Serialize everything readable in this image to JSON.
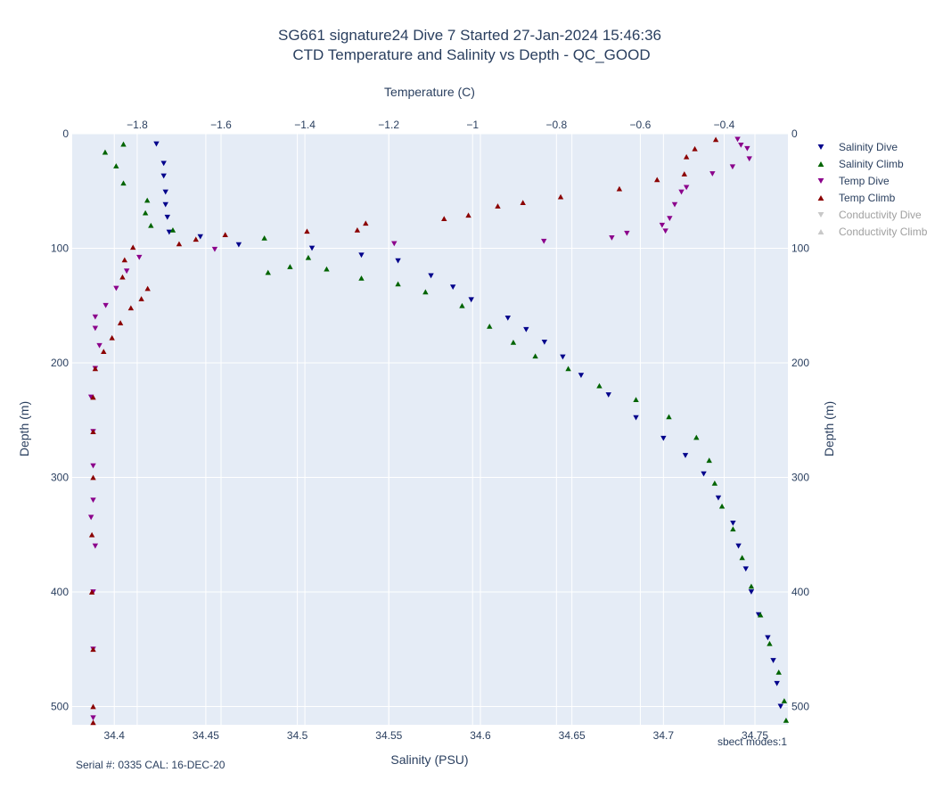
{
  "chart_data": {
    "type": "scatter",
    "title": "SG661 signature24 Dive 7 Started 27-Jan-2024 15:46:36",
    "subtitle": "CTD Temperature and Salinity vs Depth - QC_GOOD",
    "x_bottom": {
      "label": "Salinity (PSU)",
      "range": [
        34.377,
        34.768
      ],
      "ticks": [
        34.4,
        34.45,
        34.5,
        34.55,
        34.6,
        34.65,
        34.7,
        34.75
      ],
      "tick_labels": [
        "34.4",
        "34.45",
        "34.5",
        "34.55",
        "34.6",
        "34.65",
        "34.7",
        "34.75"
      ]
    },
    "x_top": {
      "label": "Temperature (C)",
      "range": [
        -1.955,
        -0.248
      ],
      "ticks": [
        -1.8,
        -1.6,
        -1.4,
        -1.2,
        -1,
        -0.8,
        -0.6,
        -0.4
      ],
      "tick_labels": [
        "−1.8",
        "−1.6",
        "−1.4",
        "−1.2",
        "−1",
        "−0.8",
        "−0.6",
        "−0.4"
      ]
    },
    "y": {
      "label": "Depth (m)",
      "range": [
        0,
        516
      ],
      "reversed": true,
      "ticks": [
        0,
        100,
        200,
        300,
        400,
        500
      ],
      "tick_labels": [
        "0",
        "100",
        "200",
        "300",
        "400",
        "500"
      ]
    },
    "grid": true,
    "legend_position": "right",
    "series": [
      {
        "name": "Salinity Dive",
        "axis": "salinity",
        "marker": "triangle-down",
        "color": "#00008b",
        "points": [
          [
            34.423,
            9
          ],
          [
            34.427,
            26
          ],
          [
            34.427,
            37
          ],
          [
            34.428,
            51
          ],
          [
            34.428,
            62
          ],
          [
            34.429,
            73
          ],
          [
            34.43,
            86
          ],
          [
            34.447,
            90
          ],
          [
            34.468,
            97
          ],
          [
            34.508,
            100
          ],
          [
            34.535,
            106
          ],
          [
            34.555,
            111
          ],
          [
            34.573,
            124
          ],
          [
            34.585,
            134
          ],
          [
            34.595,
            145
          ],
          [
            34.615,
            161
          ],
          [
            34.625,
            171
          ],
          [
            34.635,
            182
          ],
          [
            34.645,
            195
          ],
          [
            34.655,
            211
          ],
          [
            34.67,
            228
          ],
          [
            34.685,
            248
          ],
          [
            34.7,
            266
          ],
          [
            34.712,
            281
          ],
          [
            34.722,
            297
          ],
          [
            34.73,
            318
          ],
          [
            34.738,
            340
          ],
          [
            34.741,
            360
          ],
          [
            34.745,
            380
          ],
          [
            34.748,
            400
          ],
          [
            34.752,
            420
          ],
          [
            34.757,
            440
          ],
          [
            34.76,
            460
          ],
          [
            34.762,
            480
          ],
          [
            34.764,
            500
          ]
        ]
      },
      {
        "name": "Salinity Climb",
        "axis": "salinity",
        "marker": "triangle-up",
        "color": "#006400",
        "points": [
          [
            34.395,
            16
          ],
          [
            34.405,
            9
          ],
          [
            34.401,
            28
          ],
          [
            34.405,
            43
          ],
          [
            34.418,
            58
          ],
          [
            34.417,
            69
          ],
          [
            34.42,
            80
          ],
          [
            34.432,
            84
          ],
          [
            34.482,
            91
          ],
          [
            34.484,
            121
          ],
          [
            34.496,
            116
          ],
          [
            34.506,
            108
          ],
          [
            34.516,
            118
          ],
          [
            34.535,
            126
          ],
          [
            34.555,
            131
          ],
          [
            34.57,
            138
          ],
          [
            34.59,
            150
          ],
          [
            34.605,
            168
          ],
          [
            34.618,
            182
          ],
          [
            34.63,
            194
          ],
          [
            34.648,
            205
          ],
          [
            34.665,
            220
          ],
          [
            34.685,
            232
          ],
          [
            34.703,
            247
          ],
          [
            34.718,
            265
          ],
          [
            34.725,
            285
          ],
          [
            34.728,
            305
          ],
          [
            34.732,
            325
          ],
          [
            34.738,
            345
          ],
          [
            34.743,
            370
          ],
          [
            34.748,
            395
          ],
          [
            34.753,
            420
          ],
          [
            34.758,
            445
          ],
          [
            34.763,
            470
          ],
          [
            34.766,
            495
          ],
          [
            34.767,
            512
          ]
        ]
      },
      {
        "name": "Temp Dive",
        "axis": "temperature",
        "marker": "triangle-down",
        "color": "#8b008b",
        "points": [
          [
            -0.368,
            5
          ],
          [
            -0.36,
            10
          ],
          [
            -0.345,
            13
          ],
          [
            -0.34,
            22
          ],
          [
            -0.38,
            29
          ],
          [
            -0.428,
            35
          ],
          [
            -0.49,
            47
          ],
          [
            -0.502,
            51
          ],
          [
            -0.518,
            62
          ],
          [
            -0.53,
            74
          ],
          [
            -0.54,
            85
          ],
          [
            -0.548,
            80
          ],
          [
            -0.632,
            87
          ],
          [
            -0.668,
            91
          ],
          [
            -0.83,
            94
          ],
          [
            -1.187,
            96
          ],
          [
            -1.615,
            101
          ],
          [
            -1.795,
            108
          ],
          [
            -1.825,
            120
          ],
          [
            -1.85,
            135
          ],
          [
            -1.875,
            150
          ],
          [
            -1.9,
            160
          ],
          [
            -1.9,
            170
          ],
          [
            -1.89,
            185
          ],
          [
            -1.9,
            205
          ],
          [
            -1.91,
            230
          ],
          [
            -1.905,
            260
          ],
          [
            -1.905,
            290
          ],
          [
            -1.905,
            320
          ],
          [
            -1.91,
            335
          ],
          [
            -1.9,
            360
          ],
          [
            -1.905,
            400
          ],
          [
            -1.905,
            450
          ],
          [
            -1.905,
            510
          ]
        ]
      },
      {
        "name": "Temp Climb",
        "axis": "temperature",
        "marker": "triangle-up",
        "color": "#8b0000",
        "points": [
          [
            -0.42,
            5
          ],
          [
            -0.47,
            13
          ],
          [
            -0.49,
            20
          ],
          [
            -0.495,
            35
          ],
          [
            -0.56,
            40
          ],
          [
            -0.65,
            48
          ],
          [
            -0.79,
            55
          ],
          [
            -0.88,
            60
          ],
          [
            -0.94,
            63
          ],
          [
            -1.01,
            71
          ],
          [
            -1.068,
            74
          ],
          [
            -1.255,
            78
          ],
          [
            -1.275,
            84
          ],
          [
            -1.395,
            85
          ],
          [
            -1.59,
            88
          ],
          [
            -1.66,
            92
          ],
          [
            -1.7,
            96
          ],
          [
            -1.81,
            99
          ],
          [
            -1.83,
            110
          ],
          [
            -1.835,
            125
          ],
          [
            -1.775,
            135
          ],
          [
            -1.79,
            144
          ],
          [
            -1.815,
            152
          ],
          [
            -1.84,
            165
          ],
          [
            -1.86,
            178
          ],
          [
            -1.88,
            190
          ],
          [
            -1.9,
            205
          ],
          [
            -1.905,
            230
          ],
          [
            -1.905,
            260
          ],
          [
            -1.905,
            300
          ],
          [
            -1.908,
            350
          ],
          [
            -1.908,
            400
          ],
          [
            -1.905,
            450
          ],
          [
            -1.905,
            500
          ],
          [
            -1.905,
            514
          ]
        ]
      },
      {
        "name": "Conductivity Dive",
        "axis": "temperature",
        "marker": "triangle-down",
        "color": "#aaaaaa",
        "hidden": true,
        "points": []
      },
      {
        "name": "Conductivity Climb",
        "axis": "temperature",
        "marker": "triangle-up",
        "color": "#aaaaaa",
        "hidden": true,
        "points": []
      }
    ],
    "footer_left": "Serial #: 0335  CAL: 16-DEC-20",
    "footer_right": "sbect modes:1"
  }
}
